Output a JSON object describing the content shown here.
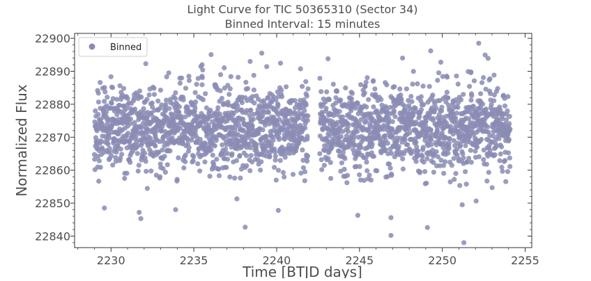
{
  "chart_data": {
    "type": "scatter",
    "title": "Light Curve for TIC 50365310 (Sector 34)",
    "subtitle": "Binned Interval: 15 minutes",
    "xlabel": "Time [BTJD days]",
    "ylabel": "Normalized Flux",
    "xlim": [
      2227.8,
      2255.4
    ],
    "ylim": [
      22836.5,
      22901.5
    ],
    "xticks": [
      2230,
      2235,
      2240,
      2245,
      2250,
      2255
    ],
    "yticks": [
      22840,
      22850,
      22860,
      22870,
      22880,
      22890,
      22900
    ],
    "xtick_labels": [
      "2230",
      "2235",
      "2240",
      "2245",
      "2250",
      "2255"
    ],
    "ytick_labels": [
      "22840",
      "22850",
      "22860",
      "22870",
      "22880",
      "22890",
      "22900"
    ],
    "legend": {
      "position": "upper left",
      "entries": [
        "Binned"
      ]
    },
    "grid": false,
    "marker_color": "#8a8cb4",
    "series": [
      {
        "name": "Binned",
        "segments": [
          {
            "x_start": 2229.0,
            "x_end": 2241.9,
            "mean": 22873,
            "std": 6.5
          },
          {
            "x_start": 2242.6,
            "x_end": 2254.1,
            "mean": 22873,
            "std": 6.5
          }
        ],
        "cadence_days": 0.0104,
        "notable_points": [
          {
            "x": 2229.6,
            "y": 22848.5
          },
          {
            "x": 2231.7,
            "y": 22847.2
          },
          {
            "x": 2231.8,
            "y": 22845.3
          },
          {
            "x": 2232.1,
            "y": 22892.3
          },
          {
            "x": 2233.9,
            "y": 22848.0
          },
          {
            "x": 2235.5,
            "y": 22892.0
          },
          {
            "x": 2237.6,
            "y": 22851.3
          },
          {
            "x": 2238.1,
            "y": 22842.7
          },
          {
            "x": 2238.4,
            "y": 22893.0
          },
          {
            "x": 2239.1,
            "y": 22895.5
          },
          {
            "x": 2240.1,
            "y": 22847.8
          },
          {
            "x": 2243.1,
            "y": 22893.8
          },
          {
            "x": 2244.9,
            "y": 22846.3
          },
          {
            "x": 2246.9,
            "y": 22840.2
          },
          {
            "x": 2246.9,
            "y": 22845.6
          },
          {
            "x": 2247.6,
            "y": 22894.0
          },
          {
            "x": 2249.1,
            "y": 22842.6
          },
          {
            "x": 2249.3,
            "y": 22896.2
          },
          {
            "x": 2251.2,
            "y": 22849.5
          },
          {
            "x": 2251.3,
            "y": 22838.0
          },
          {
            "x": 2252.2,
            "y": 22898.5
          }
        ]
      }
    ]
  }
}
